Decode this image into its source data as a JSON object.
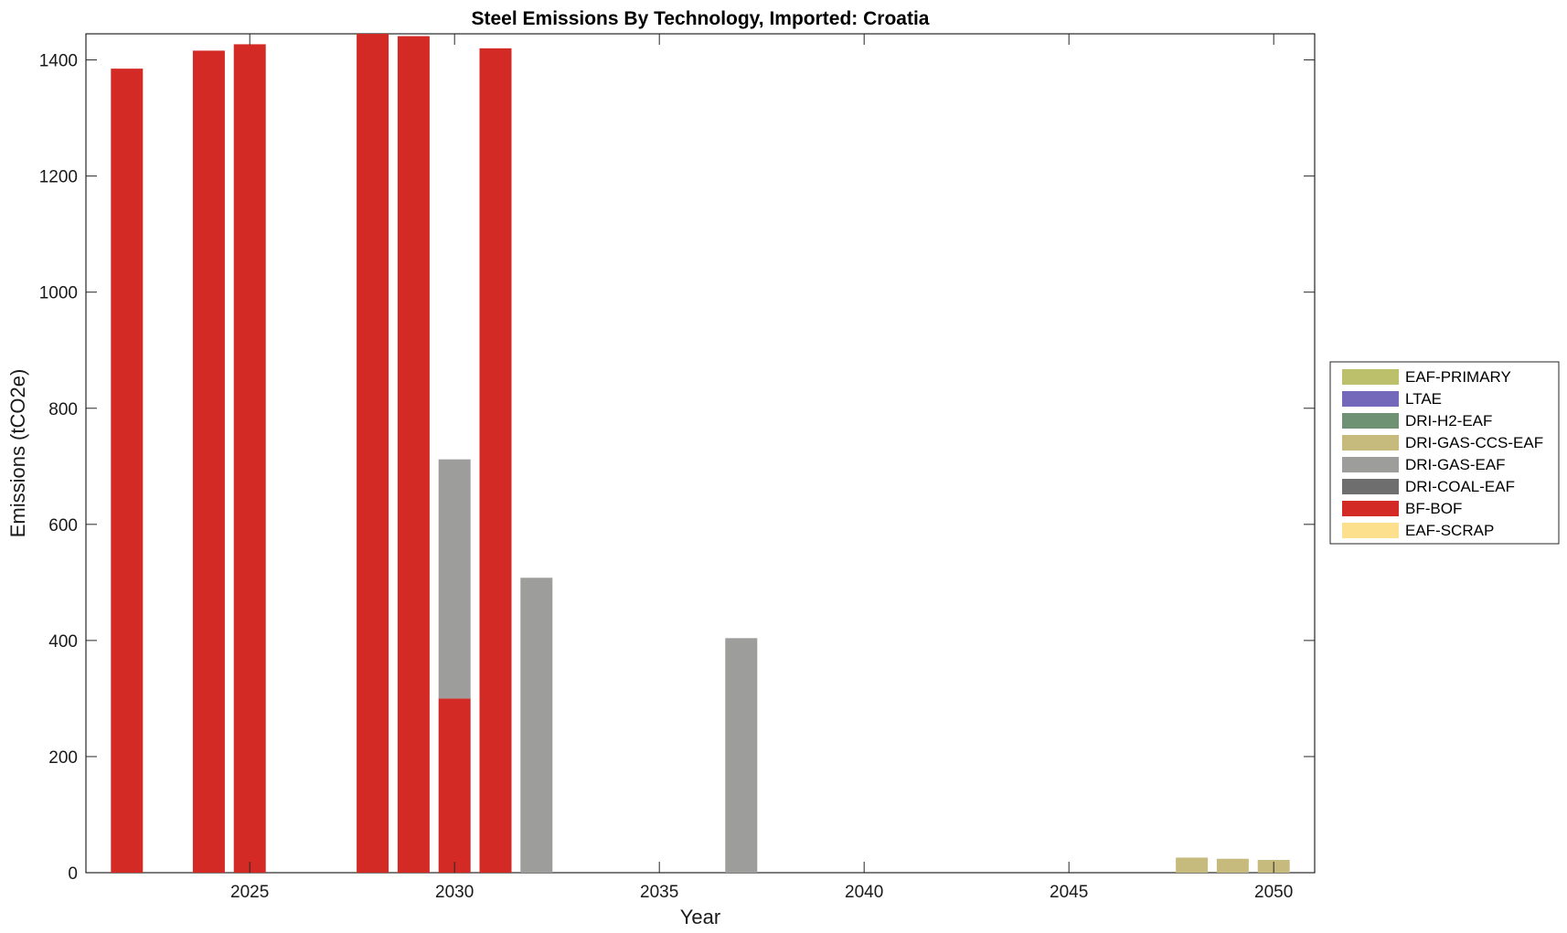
{
  "chart_data": {
    "type": "bar",
    "stacked": true,
    "title": "Steel Emissions By Technology, Imported: Croatia",
    "xlabel": "Year",
    "ylabel": "Emissions (tCO2e)",
    "xlim": [
      2021,
      2051
    ],
    "ylim": [
      0,
      1445
    ],
    "xticks": [
      2025,
      2030,
      2035,
      2040,
      2045,
      2050
    ],
    "yticks": [
      0,
      200,
      400,
      600,
      800,
      1000,
      1200,
      1400
    ],
    "legend_position": "right",
    "x": [
      2022,
      2023,
      2024,
      2025,
      2026,
      2027,
      2028,
      2029,
      2030,
      2031,
      2032,
      2033,
      2034,
      2035,
      2036,
      2037,
      2038,
      2039,
      2040,
      2041,
      2042,
      2043,
      2044,
      2045,
      2046,
      2047,
      2048,
      2049,
      2050
    ],
    "series": [
      {
        "name": "EAF-SCRAP",
        "color": "#fde08e",
        "values": [
          0,
          0,
          0,
          0,
          0,
          0,
          0,
          0,
          0,
          0,
          0,
          0,
          0,
          0,
          0,
          0,
          0,
          0,
          0,
          0,
          0,
          0,
          0,
          0,
          0,
          0,
          0,
          0,
          0
        ]
      },
      {
        "name": "BF-BOF",
        "color": "#d42a26",
        "values": [
          1385,
          0,
          1416,
          1427,
          0,
          0,
          1445,
          1441,
          300,
          1420,
          0,
          0,
          0,
          0,
          0,
          0,
          0,
          0,
          0,
          0,
          0,
          0,
          0,
          0,
          0,
          0,
          0,
          0,
          0
        ]
      },
      {
        "name": "DRI-COAL-EAF",
        "color": "#6e6e6e",
        "values": [
          0,
          0,
          0,
          0,
          0,
          0,
          0,
          0,
          0,
          0,
          0,
          0,
          0,
          0,
          0,
          0,
          0,
          0,
          0,
          0,
          0,
          0,
          0,
          0,
          0,
          0,
          0,
          0,
          0
        ]
      },
      {
        "name": "DRI-GAS-EAF",
        "color": "#9d9d9c",
        "values": [
          0,
          0,
          0,
          0,
          0,
          0,
          0,
          0,
          412,
          0,
          508,
          0,
          0,
          0,
          0,
          404,
          0,
          0,
          0,
          0,
          0,
          0,
          0,
          0,
          0,
          0,
          0,
          0,
          0
        ]
      },
      {
        "name": "DRI-GAS-CCS-EAF",
        "color": "#c6bb7d",
        "values": [
          0,
          0,
          0,
          0,
          0,
          0,
          0,
          0,
          0,
          0,
          0,
          0,
          0,
          0,
          0,
          0,
          0,
          0,
          0,
          0,
          0,
          0,
          0,
          0,
          0,
          0,
          26,
          24,
          22
        ]
      },
      {
        "name": "DRI-H2-EAF",
        "color": "#6f9274",
        "values": [
          0,
          0,
          0,
          0,
          0,
          0,
          0,
          0,
          0,
          0,
          0,
          0,
          0,
          0,
          0,
          0,
          0,
          0,
          0,
          0,
          0,
          0,
          0,
          0,
          0,
          0,
          0,
          0,
          0
        ]
      },
      {
        "name": "LTAE",
        "color": "#7368b9",
        "values": [
          0,
          0,
          0,
          0,
          0,
          0,
          0,
          0,
          0,
          0,
          0,
          0,
          0,
          0,
          0,
          0,
          0,
          0,
          0,
          0,
          0,
          0,
          0,
          0,
          0,
          0,
          0,
          0,
          0
        ]
      },
      {
        "name": "EAF-PRIMARY",
        "color": "#bcc06a",
        "values": [
          0,
          0,
          0,
          0,
          0,
          0,
          0,
          0,
          0,
          0,
          0,
          0,
          0,
          0,
          0,
          0,
          0,
          0,
          0,
          0,
          0,
          0,
          0,
          0,
          0,
          0,
          0,
          0,
          0
        ]
      }
    ],
    "legend_order": [
      "EAF-PRIMARY",
      "LTAE",
      "DRI-H2-EAF",
      "DRI-GAS-CCS-EAF",
      "DRI-GAS-EAF",
      "DRI-COAL-EAF",
      "BF-BOF",
      "EAF-SCRAP"
    ]
  }
}
